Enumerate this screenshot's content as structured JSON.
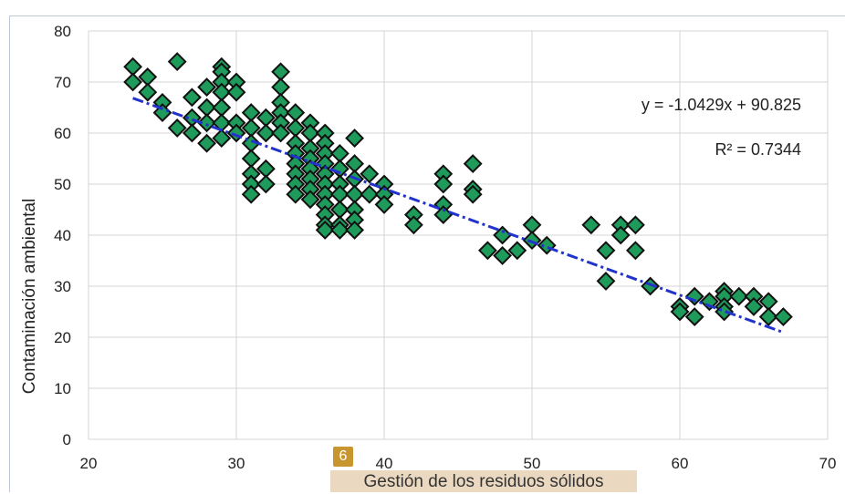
{
  "badge": "6",
  "chart_data": {
    "type": "scatter",
    "title": "",
    "xlabel": "Gestión de los residuos sólidos",
    "ylabel": "Contaminación ambiental",
    "xlim": [
      20,
      70
    ],
    "ylim": [
      0,
      80
    ],
    "xticks": [
      "20",
      "30",
      "40",
      "50",
      "60",
      "70"
    ],
    "yticks": [
      "0",
      "10",
      "20",
      "30",
      "40",
      "50",
      "60",
      "70",
      "80"
    ],
    "grid": true,
    "legend": "none",
    "colors": {
      "marker_fill": "#1e9a5a",
      "marker_edge": "#111111",
      "trendline": "#2233cc"
    },
    "trendline": {
      "equation": "y = -1.0429x + 90.825",
      "r_squared": "R² = 0.7344",
      "slope": -1.0429,
      "intercept": 90.825,
      "x_range": [
        23,
        67
      ],
      "style": "dash-dot"
    },
    "points": [
      [
        23,
        73
      ],
      [
        23,
        70
      ],
      [
        24,
        71
      ],
      [
        24,
        68
      ],
      [
        25,
        66
      ],
      [
        25,
        64
      ],
      [
        26,
        74
      ],
      [
        26,
        61
      ],
      [
        27,
        67
      ],
      [
        27,
        63
      ],
      [
        27,
        60
      ],
      [
        28,
        69
      ],
      [
        28,
        65
      ],
      [
        28,
        62
      ],
      [
        28,
        58
      ],
      [
        29,
        73
      ],
      [
        29,
        72
      ],
      [
        29,
        70
      ],
      [
        29,
        68
      ],
      [
        29,
        65
      ],
      [
        29,
        62
      ],
      [
        29,
        59
      ],
      [
        30,
        70
      ],
      [
        30,
        68
      ],
      [
        30,
        62
      ],
      [
        30,
        60
      ],
      [
        31,
        64
      ],
      [
        31,
        61
      ],
      [
        31,
        58
      ],
      [
        31,
        55
      ],
      [
        31,
        52
      ],
      [
        31,
        50
      ],
      [
        31,
        48
      ],
      [
        32,
        63
      ],
      [
        32,
        60
      ],
      [
        32,
        53
      ],
      [
        32,
        50
      ],
      [
        33,
        72
      ],
      [
        33,
        69
      ],
      [
        33,
        66
      ],
      [
        33,
        64
      ],
      [
        33,
        62
      ],
      [
        33,
        60
      ],
      [
        34,
        64
      ],
      [
        34,
        61
      ],
      [
        34,
        58
      ],
      [
        34,
        56
      ],
      [
        34,
        54
      ],
      [
        34,
        52
      ],
      [
        34,
        50
      ],
      [
        34,
        48
      ],
      [
        35,
        62
      ],
      [
        35,
        60
      ],
      [
        35,
        57
      ],
      [
        35,
        55
      ],
      [
        35,
        53
      ],
      [
        35,
        51
      ],
      [
        35,
        49
      ],
      [
        35,
        47
      ],
      [
        36,
        60
      ],
      [
        36,
        58
      ],
      [
        36,
        56
      ],
      [
        36,
        54
      ],
      [
        36,
        52
      ],
      [
        36,
        50
      ],
      [
        36,
        48
      ],
      [
        36,
        46
      ],
      [
        36,
        44
      ],
      [
        36,
        42
      ],
      [
        36,
        41
      ],
      [
        37,
        56
      ],
      [
        37,
        53
      ],
      [
        37,
        50
      ],
      [
        37,
        48
      ],
      [
        37,
        45
      ],
      [
        37,
        42
      ],
      [
        37,
        41
      ],
      [
        38,
        59
      ],
      [
        38,
        54
      ],
      [
        38,
        51
      ],
      [
        38,
        48
      ],
      [
        38,
        45
      ],
      [
        38,
        43
      ],
      [
        38,
        41
      ],
      [
        39,
        52
      ],
      [
        39,
        48
      ],
      [
        40,
        50
      ],
      [
        40,
        48
      ],
      [
        40,
        46
      ],
      [
        42,
        44
      ],
      [
        42,
        42
      ],
      [
        44,
        52
      ],
      [
        44,
        50
      ],
      [
        44,
        46
      ],
      [
        44,
        44
      ],
      [
        46,
        54
      ],
      [
        46,
        49
      ],
      [
        46,
        48
      ],
      [
        47,
        37
      ],
      [
        48,
        40
      ],
      [
        48,
        36
      ],
      [
        49,
        37
      ],
      [
        50,
        42
      ],
      [
        50,
        39
      ],
      [
        51,
        38
      ],
      [
        54,
        42
      ],
      [
        55,
        37
      ],
      [
        55,
        31
      ],
      [
        56,
        42
      ],
      [
        56,
        40
      ],
      [
        57,
        42
      ],
      [
        57,
        37
      ],
      [
        58,
        30
      ],
      [
        60,
        26
      ],
      [
        60,
        25
      ],
      [
        61,
        28
      ],
      [
        61,
        24
      ],
      [
        62,
        27
      ],
      [
        63,
        29
      ],
      [
        63,
        28
      ],
      [
        63,
        26
      ],
      [
        63,
        25
      ],
      [
        64,
        28
      ],
      [
        65,
        28
      ],
      [
        65,
        26
      ],
      [
        66,
        27
      ],
      [
        66,
        24
      ],
      [
        67,
        24
      ]
    ]
  }
}
